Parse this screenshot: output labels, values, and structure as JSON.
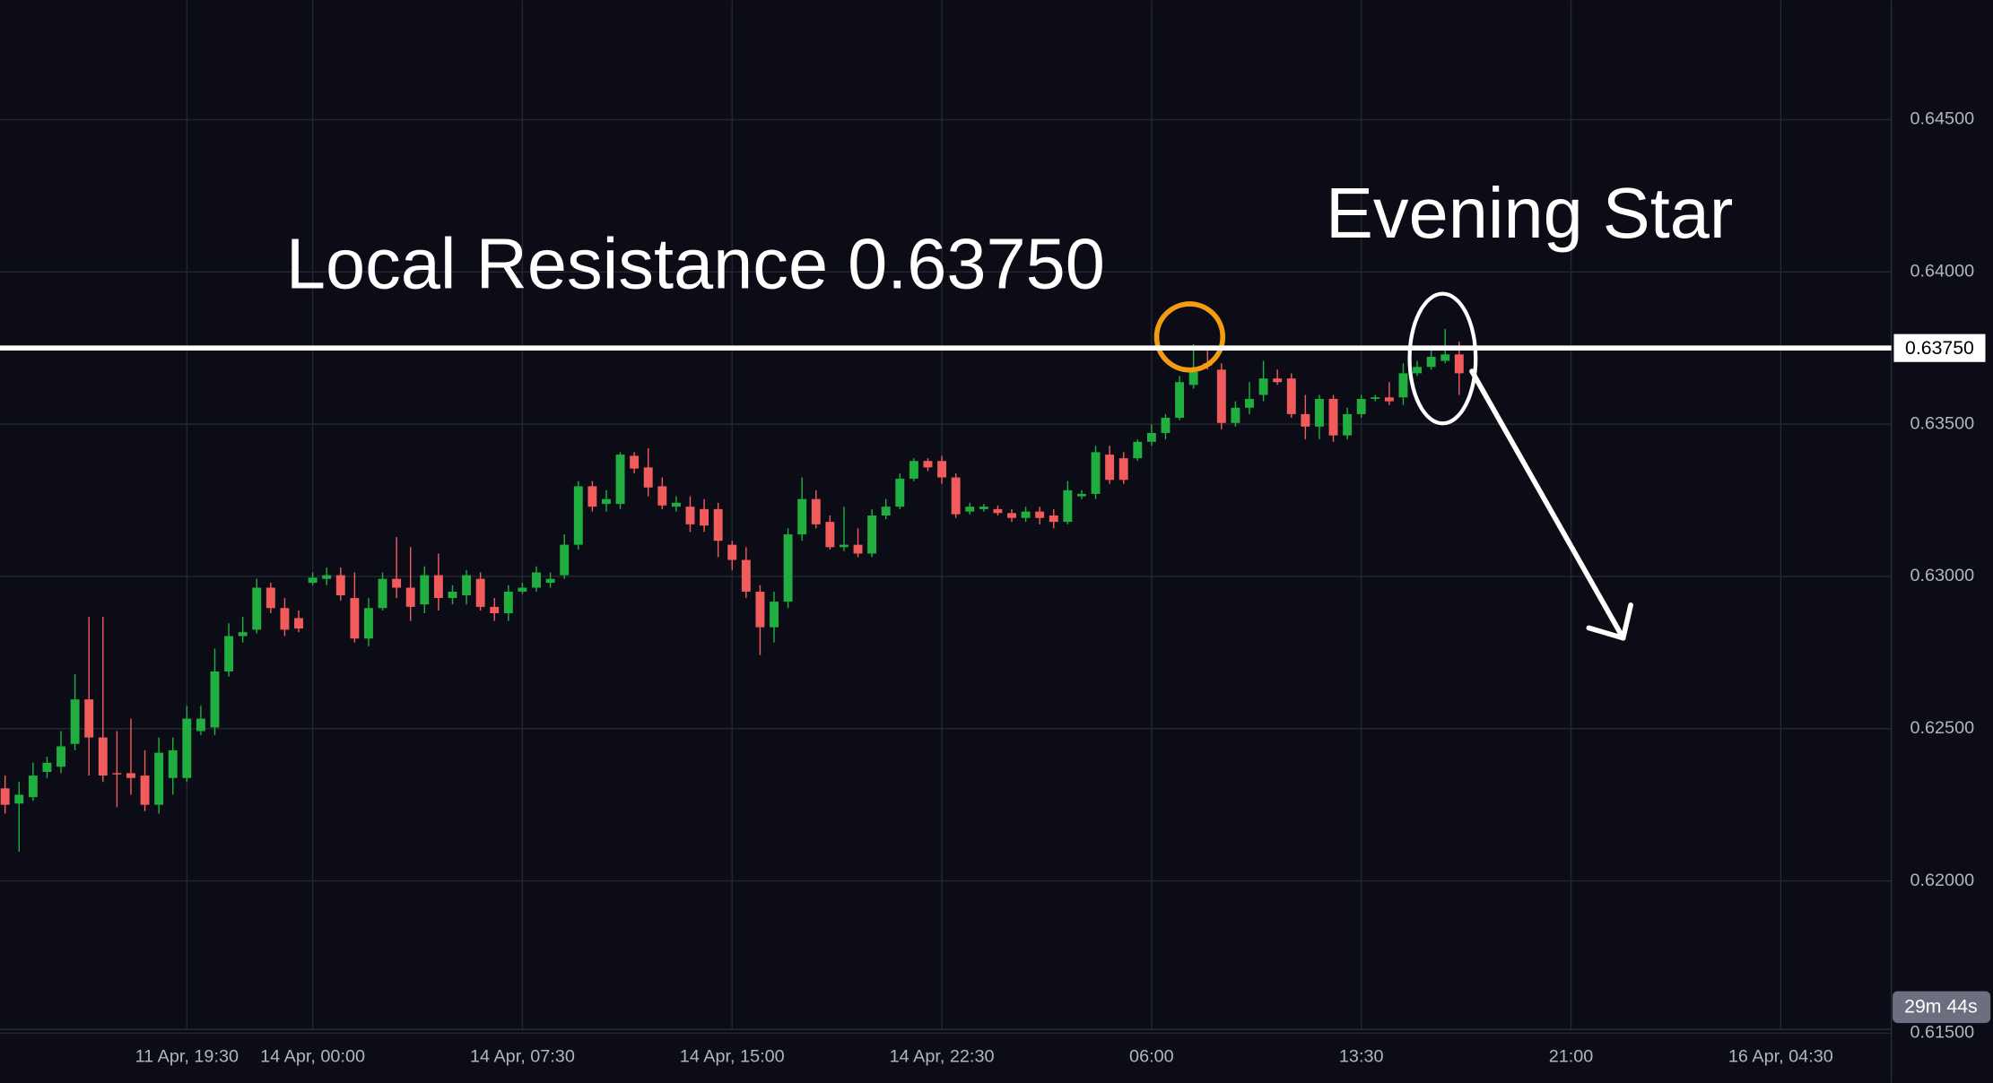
{
  "chart_data": {
    "type": "candlestick",
    "annotations": [
      "Local Resistance 0.63750",
      "Evening Star"
    ],
    "countdown": "29m 44s",
    "resistance": {
      "value": 0.6375,
      "label": "0.63750"
    },
    "up_color": "#1fae3f",
    "down_color": "#f15b5b",
    "ylim": [
      0.615,
      0.64892
    ],
    "yticks": [
      {
        "value": 0.615,
        "label": "0.61500"
      },
      {
        "value": 0.62,
        "label": "0.62000"
      },
      {
        "value": 0.625,
        "label": "0.62500"
      },
      {
        "value": 0.63,
        "label": "0.63000"
      },
      {
        "value": 0.635,
        "label": "0.63500"
      },
      {
        "value": 0.64,
        "label": "0.64000"
      },
      {
        "value": 0.645,
        "label": "0.64500"
      }
    ],
    "grid": true,
    "categories": [
      null,
      null,
      null,
      null,
      null,
      null,
      null,
      null,
      null,
      null,
      null,
      null,
      null,
      "11 Apr, 19:30",
      null,
      null,
      null,
      null,
      null,
      null,
      null,
      null,
      "14 Apr, 00:00",
      null,
      null,
      null,
      null,
      null,
      null,
      null,
      null,
      null,
      null,
      null,
      null,
      null,
      null,
      "14 Apr, 07:30",
      null,
      null,
      null,
      null,
      null,
      null,
      null,
      null,
      null,
      null,
      null,
      null,
      null,
      null,
      "14 Apr, 15:00",
      null,
      null,
      null,
      null,
      null,
      null,
      null,
      null,
      null,
      null,
      null,
      null,
      null,
      null,
      "14 Apr, 22:30",
      null,
      null,
      null,
      null,
      null,
      null,
      null,
      null,
      null,
      null,
      null,
      null,
      null,
      null,
      "06:00",
      null,
      null,
      null,
      null,
      null,
      null,
      null,
      null,
      null,
      null,
      null,
      null,
      null,
      null,
      "13:30",
      null,
      null,
      null,
      null,
      null,
      null,
      null,
      null,
      null,
      null,
      null,
      null,
      null,
      null,
      "21:00",
      null,
      null,
      null,
      null,
      null,
      null,
      null,
      null,
      null,
      null,
      null,
      null,
      null,
      null,
      "16 Apr, 04:30"
    ],
    "open": [
      0.62304,
      0.62254,
      0.62275,
      0.62358,
      0.62375,
      0.6245,
      0.62596,
      0.62471,
      0.62354,
      0.62354,
      0.62346,
      0.6225,
      0.62338,
      0.62338,
      0.62492,
      0.62504,
      0.62688,
      0.62804,
      0.62825,
      0.62963,
      0.62896,
      0.62863,
      0.62979,
      0.62992,
      0.63004,
      0.62929,
      0.62796,
      0.62896,
      0.62992,
      0.62963,
      0.62908,
      0.63004,
      0.62929,
      0.62938,
      0.62992,
      0.629,
      0.62879,
      0.6295,
      0.62963,
      0.62979,
      0.63004,
      0.63104,
      0.63296,
      0.63238,
      0.63238,
      0.63396,
      0.63358,
      0.63296,
      0.63229,
      0.63229,
      0.63221,
      0.63221,
      0.63104,
      0.63054,
      0.6295,
      0.62833,
      0.62917,
      0.63138,
      0.63254,
      0.63179,
      0.63096,
      0.63104,
      0.63075,
      0.632,
      0.63229,
      0.63321,
      0.63379,
      0.63379,
      0.63325,
      0.63213,
      0.63221,
      0.63221,
      0.63208,
      0.63192,
      0.63213,
      0.632,
      0.63179,
      0.63263,
      0.63271,
      0.634,
      0.63388,
      0.63388,
      0.63442,
      0.63471,
      0.63521,
      0.63629,
      0.637,
      0.63679,
      0.63504,
      0.63554,
      0.63596,
      0.6365,
      0.6365,
      0.63533,
      0.63492,
      0.63583,
      0.63463,
      0.63533,
      0.63583,
      0.63588,
      0.63588,
      0.63667,
      0.63688,
      0.63708,
      0.63729,
      null,
      null,
      null,
      null,
      null,
      null,
      null,
      null,
      null,
      null,
      null,
      null,
      null,
      null,
      null,
      null,
      null,
      null,
      null,
      null,
      null,
      null,
      null
    ],
    "high": [
      0.62346,
      0.62325,
      0.62388,
      0.62408,
      0.62492,
      0.62679,
      0.62867,
      0.62867,
      0.62492,
      0.62533,
      0.62429,
      0.62471,
      0.62471,
      0.62575,
      0.62575,
      0.62763,
      0.62846,
      0.62867,
      0.62992,
      0.62979,
      0.62929,
      0.62888,
      0.63013,
      0.63029,
      0.63029,
      0.63013,
      0.62929,
      0.63013,
      0.63129,
      0.63096,
      0.63033,
      0.63075,
      0.62971,
      0.63021,
      0.63013,
      0.62929,
      0.62971,
      0.62979,
      0.63033,
      0.63013,
      0.63138,
      0.63313,
      0.63313,
      0.63283,
      0.63408,
      0.63408,
      0.63421,
      0.63325,
      0.63263,
      0.63263,
      0.63254,
      0.63242,
      0.63117,
      0.63096,
      0.62971,
      0.6295,
      0.63158,
      0.63325,
      0.63283,
      0.632,
      0.63229,
      0.63158,
      0.63221,
      0.63254,
      0.63338,
      0.63388,
      0.63388,
      0.63396,
      0.63338,
      0.63242,
      0.63238,
      0.63233,
      0.63221,
      0.63229,
      0.63229,
      0.63221,
      0.63313,
      0.63283,
      0.63429,
      0.63429,
      0.63408,
      0.6345,
      0.635,
      0.63533,
      0.63658,
      0.63763,
      0.63742,
      0.637,
      0.63575,
      0.63638,
      0.63708,
      0.63679,
      0.63667,
      0.63596,
      0.63596,
      0.63596,
      0.63554,
      0.63596,
      0.63596,
      0.63638,
      0.637,
      0.63708,
      0.63742,
      0.63813,
      0.63771,
      null,
      null,
      null,
      null,
      null,
      null,
      null,
      null,
      null,
      null,
      null,
      null,
      null,
      null,
      null,
      null,
      null,
      null,
      null,
      null,
      null,
      null,
      null
    ],
    "low": [
      0.62221,
      0.62096,
      0.62263,
      0.62338,
      0.62354,
      0.62429,
      0.62346,
      0.62325,
      0.62242,
      0.62283,
      0.62229,
      0.62221,
      0.62283,
      0.62325,
      0.62479,
      0.62479,
      0.62671,
      0.62783,
      0.62813,
      0.62879,
      0.62804,
      0.62817,
      0.62971,
      0.62971,
      0.62921,
      0.62783,
      0.62771,
      0.62888,
      0.62929,
      0.62854,
      0.62879,
      0.62888,
      0.62908,
      0.62908,
      0.62888,
      0.62854,
      0.62854,
      0.62942,
      0.6295,
      0.62963,
      0.62992,
      0.63088,
      0.63213,
      0.63213,
      0.63221,
      0.63338,
      0.63263,
      0.63221,
      0.63213,
      0.63146,
      0.63146,
      0.63063,
      0.63021,
      0.62929,
      0.62742,
      0.62783,
      0.62896,
      0.63117,
      0.63158,
      0.63088,
      0.63083,
      0.63063,
      0.63063,
      0.63188,
      0.63221,
      0.63313,
      0.63346,
      0.63304,
      0.63192,
      0.63204,
      0.63213,
      0.632,
      0.63179,
      0.63179,
      0.63171,
      0.63158,
      0.63171,
      0.63254,
      0.63254,
      0.63304,
      0.63304,
      0.63379,
      0.63429,
      0.6345,
      0.63513,
      0.63617,
      0.63679,
      0.63483,
      0.63492,
      0.63533,
      0.63575,
      0.63629,
      0.63521,
      0.6345,
      0.6345,
      0.63442,
      0.6345,
      0.63521,
      0.63575,
      0.63563,
      0.63563,
      0.63658,
      0.63679,
      0.637,
      0.63596,
      null,
      null,
      null,
      null,
      null,
      null,
      null,
      null,
      null,
      null,
      null,
      null,
      null,
      null,
      null,
      null,
      null,
      null,
      null,
      null,
      null,
      null,
      null
    ],
    "close": [
      0.6225,
      0.62283,
      0.62346,
      0.62388,
      0.62442,
      0.62596,
      0.62471,
      0.62346,
      0.6235,
      0.62338,
      0.6225,
      0.62421,
      0.62429,
      0.62533,
      0.62533,
      0.62688,
      0.62804,
      0.62817,
      0.62963,
      0.62896,
      0.62825,
      0.62829,
      0.62996,
      0.63004,
      0.62938,
      0.62796,
      0.62896,
      0.62992,
      0.62963,
      0.629,
      0.63004,
      0.62929,
      0.6295,
      0.63004,
      0.629,
      0.62879,
      0.6295,
      0.62963,
      0.63013,
      0.62992,
      0.63104,
      0.63296,
      0.63229,
      0.63254,
      0.634,
      0.63354,
      0.63292,
      0.63233,
      0.63242,
      0.63171,
      0.63167,
      0.63117,
      0.63054,
      0.6295,
      0.62833,
      0.62917,
      0.63138,
      0.63254,
      0.63171,
      0.63096,
      0.63104,
      0.63075,
      0.632,
      0.63229,
      0.63321,
      0.63379,
      0.63358,
      0.63325,
      0.63204,
      0.63229,
      0.63229,
      0.63208,
      0.63192,
      0.63213,
      0.63192,
      0.63179,
      0.63283,
      0.63271,
      0.63408,
      0.63317,
      0.63317,
      0.63442,
      0.63471,
      0.63521,
      0.63638,
      0.63671,
      0.63692,
      0.63504,
      0.63554,
      0.63583,
      0.6365,
      0.63638,
      0.63533,
      0.63492,
      0.63583,
      0.63463,
      0.63533,
      0.63583,
      0.63588,
      0.63575,
      0.63667,
      0.63688,
      0.63721,
      0.63729,
      0.63667,
      null,
      null,
      null,
      null,
      null,
      null,
      null,
      null,
      null,
      null,
      null,
      null,
      null,
      null,
      null,
      null,
      null,
      null,
      null,
      null,
      null,
      null,
      null
    ]
  }
}
